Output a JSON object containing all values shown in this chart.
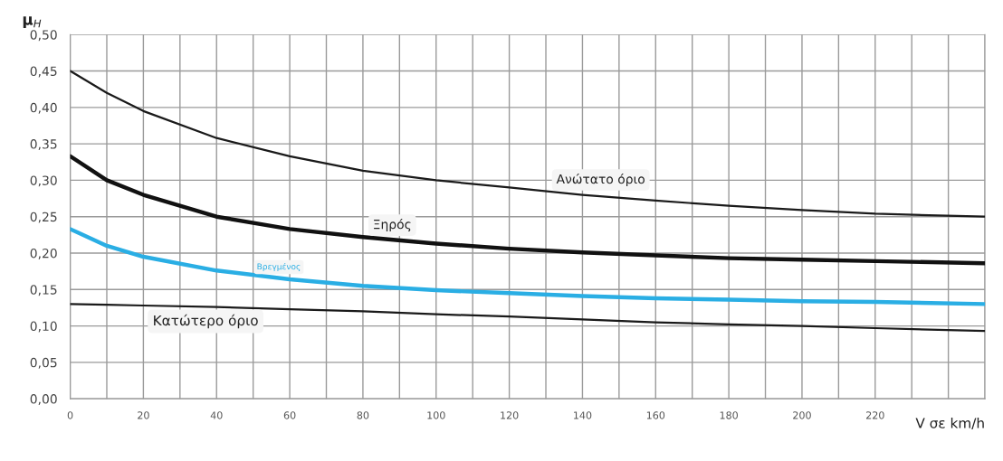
{
  "chart_data": {
    "type": "line",
    "xlabel": "V σε km/h",
    "ylabel": "μ$_{H}$",
    "x": [
      0,
      10,
      20,
      40,
      60,
      80,
      100,
      120,
      140,
      160,
      180,
      200,
      220,
      250
    ],
    "series": [
      {
        "name": "Ανώτατο όριο",
        "color": "#1a1a1a",
        "values": [
          0.45,
          0.42,
          0.395,
          0.358,
          0.333,
          0.313,
          0.3,
          0.29,
          0.28,
          0.272,
          0.265,
          0.259,
          0.254,
          0.25
        ]
      },
      {
        "name": "Ξηρός",
        "color": "#111111",
        "values": [
          0.333,
          0.3,
          0.28,
          0.25,
          0.233,
          0.222,
          0.213,
          0.206,
          0.201,
          0.197,
          0.193,
          0.191,
          0.189,
          0.186
        ]
      },
      {
        "name": "Βρεγμένος",
        "color": "#2aaee4",
        "values": [
          0.233,
          0.21,
          0.195,
          0.176,
          0.164,
          0.155,
          0.149,
          0.145,
          0.141,
          0.138,
          0.136,
          0.134,
          0.133,
          0.13
        ]
      },
      {
        "name": "Κατώτερο όριο",
        "color": "#1a1a1a",
        "values": [
          0.13,
          0.129,
          0.128,
          0.126,
          0.123,
          0.12,
          0.116,
          0.113,
          0.109,
          0.105,
          0.102,
          0.1,
          0.097,
          0.093
        ]
      }
    ],
    "xlim": [
      0,
      250
    ],
    "xticks": [
      0,
      {
        "value": 10,
        "label": null
      },
      20,
      {
        "value": 30,
        "label": null
      },
      40,
      {
        "value": 50,
        "label": null
      },
      60,
      {
        "value": 70,
        "label": null
      },
      80,
      {
        "value": 90,
        "label": null
      },
      100,
      {
        "value": 110,
        "label": null
      },
      120,
      {
        "value": 130,
        "label": null
      },
      140,
      {
        "value": 150,
        "label": null
      },
      160,
      {
        "value": 170,
        "label": null
      },
      180,
      {
        "value": 190,
        "label": null
      },
      200,
      {
        "value": 210,
        "label": null
      },
      220,
      {
        "value": 230,
        "label": null
      },
      {
        "value": 240,
        "label": null
      },
      {
        "value": 250,
        "label": null
      }
    ],
    "ylim": [
      0,
      0.5
    ],
    "yticks": [
      {
        "value": 0,
        "label": "0,00"
      },
      {
        "value": 0.05,
        "label": "0,05"
      },
      {
        "value": 0.1,
        "label": "0,10"
      },
      {
        "value": 0.15,
        "label": "0,15"
      },
      {
        "value": 0.2,
        "label": "0,20"
      },
      {
        "value": 0.25,
        "label": "0,25"
      },
      {
        "value": 0.3,
        "label": "0,30"
      },
      {
        "value": 0.35,
        "label": "0,35"
      },
      {
        "value": 0.4,
        "label": "0,40"
      },
      {
        "value": 0.45,
        "label": "0,45"
      },
      {
        "value": 0.5,
        "label": "0,50"
      }
    ],
    "grid": true,
    "legend": false,
    "marker": "none",
    "line_style": "solid"
  }
}
